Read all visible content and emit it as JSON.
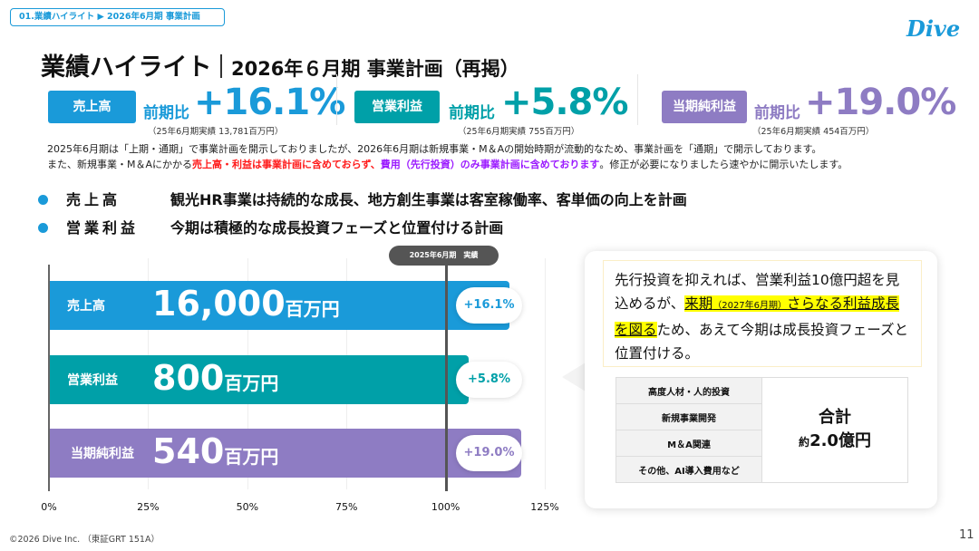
{
  "breadcrumb": "01.業績ハイライト ▶ 2026年6月期 事業計画",
  "logo": "Dive",
  "title": {
    "main": "業績ハイライト",
    "sub": "2026年６月期 事業計画（再掲）"
  },
  "kpis": [
    {
      "tag": "売上高",
      "label": "前期比",
      "value": "+16.1%",
      "note": "（25年6月期実績 13,781百万円）",
      "color": "#1a9ad9"
    },
    {
      "tag": "営業利益",
      "label": "前期比",
      "value": "+5.8%",
      "note": "（25年6月期実績 755百万円）",
      "color": "#00a0a8"
    },
    {
      "tag": "当期純利益",
      "label": "前期比",
      "value": "+19.0%",
      "note": "（25年6月期実績 454百万円）",
      "color": "#8e7cc3"
    }
  ],
  "notes": {
    "line1": "2025年6月期は「上期・通期」で事業計画を開示しておりましたが、2026年6月期は新規事業・M＆Aの開始時期が流動的なため、事業計画を「通期」で開示しております。",
    "line2_a": "また、新規事業・M＆Aにかかる",
    "line2_red": "売上高・利益は事業計画に含めておらず、",
    "line2_purple": "費用（先行投資）のみ事業計画に含めております",
    "line2_b": "。修正が必要になりましたら速やかに開示いたします。"
  },
  "bullets": [
    {
      "key": "売上高",
      "text": "観光HR事業は持続的な成長、地方創生事業は客室稼働率、客単価の向上を計画"
    },
    {
      "key": "営業利益",
      "text": "今期は積極的な成長投資フェーズと位置付ける計画"
    }
  ],
  "chart_data": {
    "type": "bar",
    "orientation": "horizontal",
    "categories": [
      "売上高",
      "営業利益",
      "当期純利益"
    ],
    "values": [
      116.1,
      105.8,
      119.0
    ],
    "value_labels": [
      "16,000",
      "800",
      "540"
    ],
    "value_unit": "百万円",
    "growth_labels": [
      "+16.1%",
      "+5.8%",
      "+19.0%"
    ],
    "colors": [
      "#1a9ad9",
      "#00a0a8",
      "#8e7cc3"
    ],
    "xlim": [
      0,
      125
    ],
    "xticks": [
      "0%",
      "25%",
      "50%",
      "75%",
      "100%",
      "125%"
    ],
    "reference_line": {
      "value": 100,
      "label": "2025年6月期　実績"
    },
    "grid": true
  },
  "callout": {
    "p1": "先行投資を抑えれば、営業利益10億円超を見込めるが、",
    "hl1": "来期",
    "hl_small": "（2027年6月期）",
    "hl2": "さらなる利益成長を図る",
    "p2": "ため、あえて今期は成長投資フェーズと位置付ける。"
  },
  "cost_table": {
    "items": [
      "高度人材・人的投資",
      "新規事業開発",
      "M＆A関連",
      "その他、AI導入費用など"
    ],
    "total_label": "合計",
    "total_prefix": "約",
    "total_value": "2.0億円"
  },
  "footer": {
    "copyright": "©2026 Dive Inc. （東証GRT 151A）",
    "page": "11"
  }
}
